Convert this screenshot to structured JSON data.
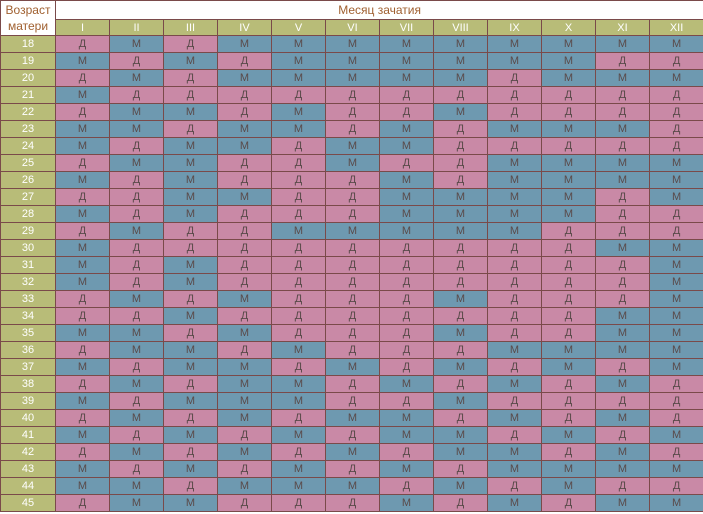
{
  "header": {
    "corner_line1": "Возраст",
    "corner_line2": "матери",
    "title": "Месяц зачатия"
  },
  "months": [
    "I",
    "II",
    "III",
    "IV",
    "V",
    "VI",
    "VII",
    "VIII",
    "IX",
    "X",
    "XI",
    "XII"
  ],
  "colors": {
    "Д": "#c989a6",
    "М": "#6e99b0",
    "header": "#b8bc78"
  },
  "rows": [
    {
      "age": "18",
      "cells": [
        "Д",
        "М",
        "Д",
        "М",
        "М",
        "М",
        "М",
        "М",
        "М",
        "М",
        "М",
        "М"
      ]
    },
    {
      "age": "19",
      "cells": [
        "М",
        "Д",
        "М",
        "Д",
        "М",
        "М",
        "М",
        "М",
        "М",
        "М",
        "Д",
        "Д"
      ]
    },
    {
      "age": "20",
      "cells": [
        "Д",
        "М",
        "Д",
        "М",
        "М",
        "М",
        "М",
        "М",
        "Д",
        "М",
        "М",
        "М"
      ]
    },
    {
      "age": "21",
      "cells": [
        "М",
        "Д",
        "Д",
        "Д",
        "Д",
        "Д",
        "Д",
        "Д",
        "Д",
        "Д",
        "Д",
        "Д"
      ]
    },
    {
      "age": "22",
      "cells": [
        "Д",
        "М",
        "М",
        "Д",
        "М",
        "Д",
        "Д",
        "М",
        "Д",
        "Д",
        "Д",
        "Д"
      ]
    },
    {
      "age": "23",
      "cells": [
        "М",
        "М",
        "Д",
        "М",
        "М",
        "Д",
        "М",
        "Д",
        "М",
        "М",
        "М",
        "Д"
      ]
    },
    {
      "age": "24",
      "cells": [
        "М",
        "Д",
        "М",
        "М",
        "Д",
        "М",
        "М",
        "Д",
        "Д",
        "Д",
        "Д",
        "Д"
      ]
    },
    {
      "age": "25",
      "cells": [
        "Д",
        "М",
        "М",
        "Д",
        "Д",
        "М",
        "Д",
        "Д",
        "М",
        "М",
        "М",
        "М"
      ]
    },
    {
      "age": "26",
      "cells": [
        "М",
        "Д",
        "М",
        "Д",
        "Д",
        "Д",
        "М",
        "Д",
        "М",
        "М",
        "М",
        "М"
      ]
    },
    {
      "age": "27",
      "cells": [
        "Д",
        "Д",
        "М",
        "М",
        "Д",
        "Д",
        "М",
        "М",
        "М",
        "М",
        "Д",
        "М"
      ]
    },
    {
      "age": "28",
      "cells": [
        "М",
        "Д",
        "М",
        "Д",
        "Д",
        "Д",
        "М",
        "М",
        "М",
        "М",
        "Д",
        "Д"
      ]
    },
    {
      "age": "29",
      "cells": [
        "Д",
        "М",
        "Д",
        "Д",
        "М",
        "М",
        "М",
        "М",
        "М",
        "Д",
        "Д",
        "Д"
      ]
    },
    {
      "age": "30",
      "cells": [
        "М",
        "Д",
        "Д",
        "Д",
        "Д",
        "Д",
        "Д",
        "Д",
        "Д",
        "Д",
        "М",
        "М"
      ]
    },
    {
      "age": "31",
      "cells": [
        "М",
        "Д",
        "М",
        "Д",
        "Д",
        "Д",
        "Д",
        "Д",
        "Д",
        "Д",
        "Д",
        "М"
      ]
    },
    {
      "age": "32",
      "cells": [
        "М",
        "Д",
        "М",
        "Д",
        "Д",
        "Д",
        "Д",
        "Д",
        "Д",
        "Д",
        "Д",
        "М"
      ]
    },
    {
      "age": "33",
      "cells": [
        "Д",
        "М",
        "Д",
        "М",
        "Д",
        "Д",
        "Д",
        "М",
        "Д",
        "Д",
        "Д",
        "М"
      ]
    },
    {
      "age": "34",
      "cells": [
        "Д",
        "Д",
        "М",
        "Д",
        "Д",
        "Д",
        "Д",
        "Д",
        "Д",
        "Д",
        "М",
        "М"
      ]
    },
    {
      "age": "35",
      "cells": [
        "М",
        "М",
        "Д",
        "М",
        "Д",
        "Д",
        "Д",
        "М",
        "Д",
        "Д",
        "М",
        "М"
      ]
    },
    {
      "age": "36",
      "cells": [
        "Д",
        "М",
        "М",
        "Д",
        "М",
        "Д",
        "Д",
        "Д",
        "М",
        "М",
        "М",
        "М"
      ]
    },
    {
      "age": "37",
      "cells": [
        "М",
        "Д",
        "М",
        "М",
        "Д",
        "М",
        "Д",
        "М",
        "Д",
        "М",
        "Д",
        "М"
      ]
    },
    {
      "age": "38",
      "cells": [
        "Д",
        "М",
        "Д",
        "М",
        "М",
        "Д",
        "М",
        "Д",
        "М",
        "Д",
        "М",
        "Д"
      ]
    },
    {
      "age": "39",
      "cells": [
        "М",
        "Д",
        "М",
        "М",
        "М",
        "Д",
        "Д",
        "М",
        "Д",
        "Д",
        "Д",
        "Д"
      ]
    },
    {
      "age": "40",
      "cells": [
        "Д",
        "М",
        "Д",
        "М",
        "Д",
        "М",
        "М",
        "Д",
        "М",
        "Д",
        "М",
        "Д"
      ]
    },
    {
      "age": "41",
      "cells": [
        "М",
        "Д",
        "М",
        "Д",
        "М",
        "Д",
        "М",
        "М",
        "Д",
        "М",
        "Д",
        "М"
      ]
    },
    {
      "age": "42",
      "cells": [
        "Д",
        "М",
        "Д",
        "М",
        "Д",
        "М",
        "Д",
        "М",
        "М",
        "Д",
        "М",
        "Д"
      ]
    },
    {
      "age": "43",
      "cells": [
        "М",
        "Д",
        "М",
        "Д",
        "М",
        "Д",
        "М",
        "Д",
        "М",
        "М",
        "М",
        "М"
      ]
    },
    {
      "age": "44",
      "cells": [
        "М",
        "М",
        "Д",
        "М",
        "М",
        "М",
        "Д",
        "М",
        "Д",
        "М",
        "Д",
        "Д"
      ]
    },
    {
      "age": "45",
      "cells": [
        "Д",
        "М",
        "М",
        "Д",
        "Д",
        "Д",
        "М",
        "Д",
        "М",
        "Д",
        "М",
        "М"
      ]
    }
  ]
}
